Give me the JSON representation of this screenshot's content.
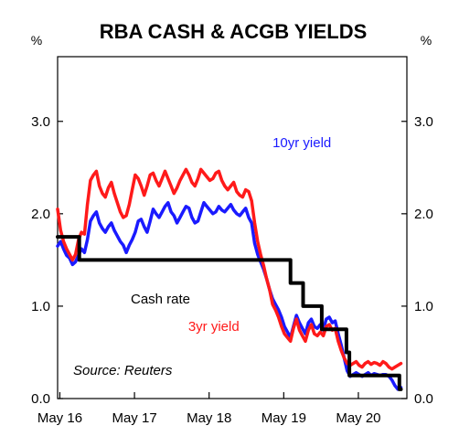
{
  "chart_data": {
    "type": "line",
    "title": "RBA CASH & ACGB YIELDS",
    "left_unit": "%",
    "right_unit": "%",
    "xlabel": "",
    "ylabel": "",
    "xlim": [
      2016.3,
      2020.98
    ],
    "ylim": [
      0,
      3.7
    ],
    "x_ticks": [
      {
        "value": 2016.33,
        "label": "May 16"
      },
      {
        "value": 2017.33,
        "label": "May 17"
      },
      {
        "value": 2018.33,
        "label": "May 18"
      },
      {
        "value": 2019.33,
        "label": "May 19"
      },
      {
        "value": 2020.33,
        "label": "May 20"
      }
    ],
    "y_ticks": [
      {
        "value": 0.0,
        "label": "0.0"
      },
      {
        "value": 1.0,
        "label": "1.0"
      },
      {
        "value": 2.0,
        "label": "2.0"
      },
      {
        "value": 3.0,
        "label": "3.0"
      }
    ],
    "grid": false,
    "source": "Source: Reuters",
    "series": [
      {
        "name": "10yr yield",
        "color": "#1a1aff",
        "x": [
          2016.3,
          2016.34,
          2016.38,
          2016.42,
          2016.46,
          2016.5,
          2016.54,
          2016.58,
          2016.62,
          2016.66,
          2016.7,
          2016.74,
          2016.78,
          2016.82,
          2016.86,
          2016.9,
          2016.94,
          2016.98,
          2017.02,
          2017.06,
          2017.1,
          2017.14,
          2017.18,
          2017.22,
          2017.26,
          2017.3,
          2017.34,
          2017.38,
          2017.42,
          2017.46,
          2017.5,
          2017.54,
          2017.58,
          2017.62,
          2017.66,
          2017.7,
          2017.74,
          2017.78,
          2017.82,
          2017.86,
          2017.9,
          2017.94,
          2017.98,
          2018.02,
          2018.06,
          2018.1,
          2018.14,
          2018.18,
          2018.22,
          2018.26,
          2018.3,
          2018.34,
          2018.38,
          2018.42,
          2018.46,
          2018.5,
          2018.54,
          2018.58,
          2018.62,
          2018.66,
          2018.7,
          2018.74,
          2018.78,
          2018.82,
          2018.86,
          2018.9,
          2018.94,
          2018.98,
          2019.02,
          2019.06,
          2019.1,
          2019.14,
          2019.18,
          2019.22,
          2019.26,
          2019.3,
          2019.34,
          2019.38,
          2019.42,
          2019.46,
          2019.5,
          2019.54,
          2019.58,
          2019.62,
          2019.66,
          2019.7,
          2019.74,
          2019.78,
          2019.82,
          2019.86,
          2019.9,
          2019.94,
          2019.98,
          2020.02,
          2020.06,
          2020.1,
          2020.14,
          2020.18,
          2020.22,
          2020.26,
          2020.3,
          2020.34,
          2020.38,
          2020.42,
          2020.46,
          2020.5,
          2020.54,
          2020.58,
          2020.62,
          2020.66,
          2020.7,
          2020.74,
          2020.78,
          2020.82,
          2020.86,
          2020.9
        ],
        "values": [
          1.65,
          1.7,
          1.62,
          1.55,
          1.52,
          1.45,
          1.48,
          1.55,
          1.62,
          1.58,
          1.72,
          1.92,
          1.98,
          2.02,
          1.9,
          1.84,
          1.8,
          1.86,
          1.9,
          1.82,
          1.76,
          1.7,
          1.66,
          1.58,
          1.66,
          1.72,
          1.8,
          1.92,
          1.94,
          1.86,
          1.8,
          1.92,
          2.05,
          2.0,
          1.96,
          2.02,
          2.08,
          2.12,
          2.02,
          1.98,
          1.9,
          1.96,
          2.02,
          2.08,
          2.06,
          1.96,
          1.9,
          1.92,
          2.02,
          2.12,
          2.08,
          2.04,
          2.0,
          2.02,
          2.08,
          2.04,
          2.02,
          2.06,
          2.1,
          2.04,
          2.0,
          1.98,
          2.02,
          2.06,
          1.96,
          1.9,
          1.68,
          1.56,
          1.48,
          1.4,
          1.3,
          1.18,
          1.08,
          1.02,
          0.96,
          0.88,
          0.78,
          0.72,
          0.66,
          0.78,
          0.9,
          0.82,
          0.76,
          0.7,
          0.82,
          0.86,
          0.78,
          0.76,
          0.8,
          0.74,
          0.86,
          0.88,
          0.82,
          0.84,
          0.7,
          0.58,
          0.44,
          0.3,
          0.24,
          0.26,
          0.28,
          0.26,
          0.24,
          0.26,
          0.28,
          0.25,
          0.27,
          0.26,
          0.25,
          0.26,
          0.26,
          0.24,
          0.2,
          0.14,
          0.1,
          0.12
        ]
      },
      {
        "name": "3yr yield",
        "color": "#ff1a1a",
        "x": [
          2016.3,
          2016.34,
          2016.38,
          2016.42,
          2016.46,
          2016.5,
          2016.54,
          2016.58,
          2016.62,
          2016.66,
          2016.7,
          2016.74,
          2016.78,
          2016.82,
          2016.86,
          2016.9,
          2016.94,
          2016.98,
          2017.02,
          2017.06,
          2017.1,
          2017.14,
          2017.18,
          2017.22,
          2017.26,
          2017.3,
          2017.34,
          2017.38,
          2017.42,
          2017.46,
          2017.5,
          2017.54,
          2017.58,
          2017.62,
          2017.66,
          2017.7,
          2017.74,
          2017.78,
          2017.82,
          2017.86,
          2017.9,
          2017.94,
          2017.98,
          2018.02,
          2018.06,
          2018.1,
          2018.14,
          2018.18,
          2018.22,
          2018.26,
          2018.3,
          2018.34,
          2018.38,
          2018.42,
          2018.46,
          2018.5,
          2018.54,
          2018.58,
          2018.62,
          2018.66,
          2018.7,
          2018.74,
          2018.78,
          2018.82,
          2018.86,
          2018.9,
          2018.94,
          2018.98,
          2019.02,
          2019.06,
          2019.1,
          2019.14,
          2019.18,
          2019.22,
          2019.26,
          2019.3,
          2019.34,
          2019.38,
          2019.42,
          2019.46,
          2019.5,
          2019.54,
          2019.58,
          2019.62,
          2019.66,
          2019.7,
          2019.74,
          2019.78,
          2019.82,
          2019.86,
          2019.9,
          2019.94,
          2019.98,
          2020.02,
          2020.06,
          2020.1,
          2020.14,
          2020.18,
          2020.22,
          2020.26,
          2020.3,
          2020.34,
          2020.38,
          2020.42,
          2020.46,
          2020.5,
          2020.54,
          2020.58,
          2020.62,
          2020.66,
          2020.7,
          2020.74,
          2020.78,
          2020.82,
          2020.86,
          2020.9
        ],
        "values": [
          2.05,
          1.82,
          1.7,
          1.62,
          1.56,
          1.5,
          1.56,
          1.72,
          1.8,
          1.78,
          2.1,
          2.36,
          2.42,
          2.46,
          2.3,
          2.22,
          2.18,
          2.28,
          2.34,
          2.22,
          2.12,
          2.02,
          1.96,
          1.98,
          2.1,
          2.26,
          2.42,
          2.38,
          2.3,
          2.2,
          2.3,
          2.42,
          2.44,
          2.36,
          2.3,
          2.38,
          2.46,
          2.38,
          2.3,
          2.22,
          2.28,
          2.36,
          2.42,
          2.48,
          2.42,
          2.34,
          2.3,
          2.38,
          2.48,
          2.44,
          2.4,
          2.36,
          2.38,
          2.44,
          2.46,
          2.36,
          2.3,
          2.26,
          2.3,
          2.34,
          2.24,
          2.2,
          2.18,
          2.26,
          2.24,
          2.14,
          1.9,
          1.7,
          1.56,
          1.44,
          1.3,
          1.18,
          1.02,
          0.96,
          0.88,
          0.78,
          0.7,
          0.66,
          0.62,
          0.76,
          0.86,
          0.74,
          0.68,
          0.62,
          0.74,
          0.8,
          0.7,
          0.68,
          0.72,
          0.68,
          0.78,
          0.8,
          0.74,
          0.76,
          0.62,
          0.52,
          0.44,
          0.38,
          0.36,
          0.38,
          0.4,
          0.36,
          0.34,
          0.38,
          0.4,
          0.37,
          0.39,
          0.38,
          0.36,
          0.4,
          0.38,
          0.34,
          0.32,
          0.34,
          0.36,
          0.38
        ]
      },
      {
        "name": "Cash rate",
        "color": "#000000",
        "step": true,
        "x": [
          2016.3,
          2016.59,
          2019.42,
          2019.59,
          2019.84,
          2020.17,
          2020.21,
          2020.88,
          2020.9
        ],
        "values": [
          1.75,
          1.5,
          1.25,
          1.0,
          0.75,
          0.5,
          0.25,
          0.1,
          0.1
        ]
      }
    ],
    "annotations": [
      {
        "text": "10yr yield",
        "color": "#1a1aff",
        "x": 2019.18,
        "y": 2.72
      },
      {
        "text": "Cash rate",
        "color": "#000000",
        "x": 2017.28,
        "y": 1.03
      },
      {
        "text": "3yr yield",
        "color": "#ff1a1a",
        "x": 2018.05,
        "y": 0.73
      }
    ]
  }
}
